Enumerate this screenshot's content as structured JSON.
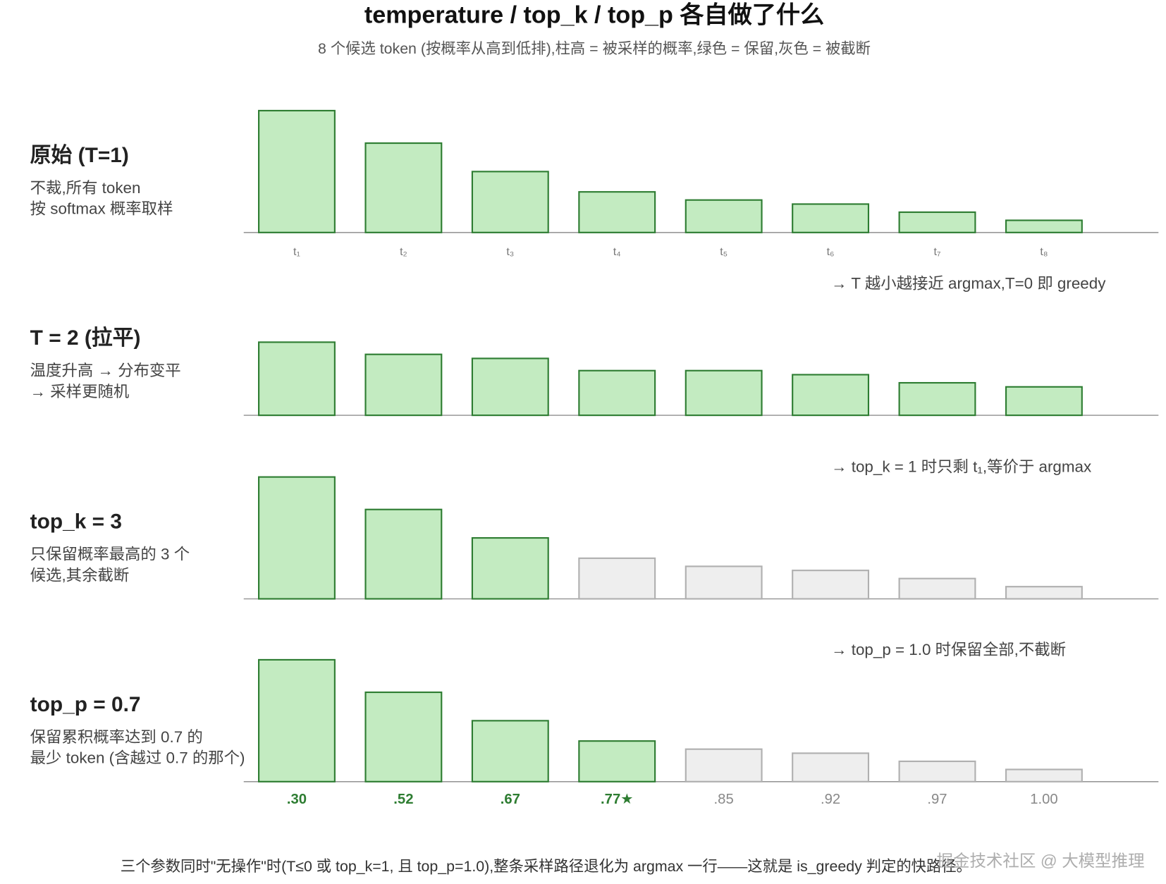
{
  "chart_data": {
    "type": "bar",
    "title": "temperature / top_k / top_p 各自做了什么",
    "subtitle": "8 个候选 token (按概率从高到低排),柱高 = 被采样的概率,绿色 = 保留,灰色 = 被截断",
    "categories": [
      "t₁",
      "t₂",
      "t₃",
      "t₄",
      "t₅",
      "t₆",
      "t₇",
      "t₈"
    ],
    "ylim": [
      0,
      0.3
    ],
    "kept_color": "#c3ebc1",
    "kept_stroke": "#2e7d32",
    "cut_color": "#eeeeee",
    "cut_stroke": "#b0b0b0",
    "panels": [
      {
        "title": "原始 (T=1)",
        "description": [
          "不裁,所有 token",
          "按 softmax 概率取样"
        ],
        "values": [
          0.3,
          0.22,
          0.15,
          0.1,
          0.08,
          0.07,
          0.05,
          0.03
        ],
        "kept": [
          true,
          true,
          true,
          true,
          true,
          true,
          true,
          true
        ],
        "note": "→ T 越小越接近 argmax,T=0 即 greedy"
      },
      {
        "title": "T = 2 (拉平)",
        "description": [
          "温度升高 → 分布变平",
          "→ 采样更随机"
        ],
        "values": [
          0.18,
          0.15,
          0.14,
          0.11,
          0.11,
          0.1,
          0.08,
          0.07
        ],
        "kept": [
          true,
          true,
          true,
          true,
          true,
          true,
          true,
          true
        ]
      },
      {
        "title": "top_k = 3",
        "description": [
          "只保留概率最高的 3 个",
          "候选,其余截断"
        ],
        "values": [
          0.3,
          0.22,
          0.15,
          0.1,
          0.08,
          0.07,
          0.05,
          0.03
        ],
        "kept": [
          true,
          true,
          true,
          false,
          false,
          false,
          false,
          false
        ],
        "note": "→ top_k = 1 时只剩 t₁,等价于 argmax"
      },
      {
        "title": "top_p = 0.7",
        "description": [
          "保留累积概率达到 0.7 的",
          "最少 token (含越过 0.7 的那个)"
        ],
        "values": [
          0.3,
          0.22,
          0.15,
          0.1,
          0.08,
          0.07,
          0.05,
          0.03
        ],
        "kept": [
          true,
          true,
          true,
          true,
          false,
          false,
          false,
          false
        ],
        "note": "→ top_p = 1.0 时保留全部,不截断",
        "cumulative_labels": [
          ".30",
          ".52",
          ".67",
          ".77★",
          ".85",
          ".92",
          ".97",
          "1.00"
        ]
      }
    ],
    "footer": "三个参数同时\"无操作\"时(T≤0 或 top_k=1, 且 top_p=1.0),整条采样路径退化为 argmax 一行——这就是 is_greedy 判定的快路径。",
    "watermark": "掘金技术社区 @ 大模型推理"
  }
}
